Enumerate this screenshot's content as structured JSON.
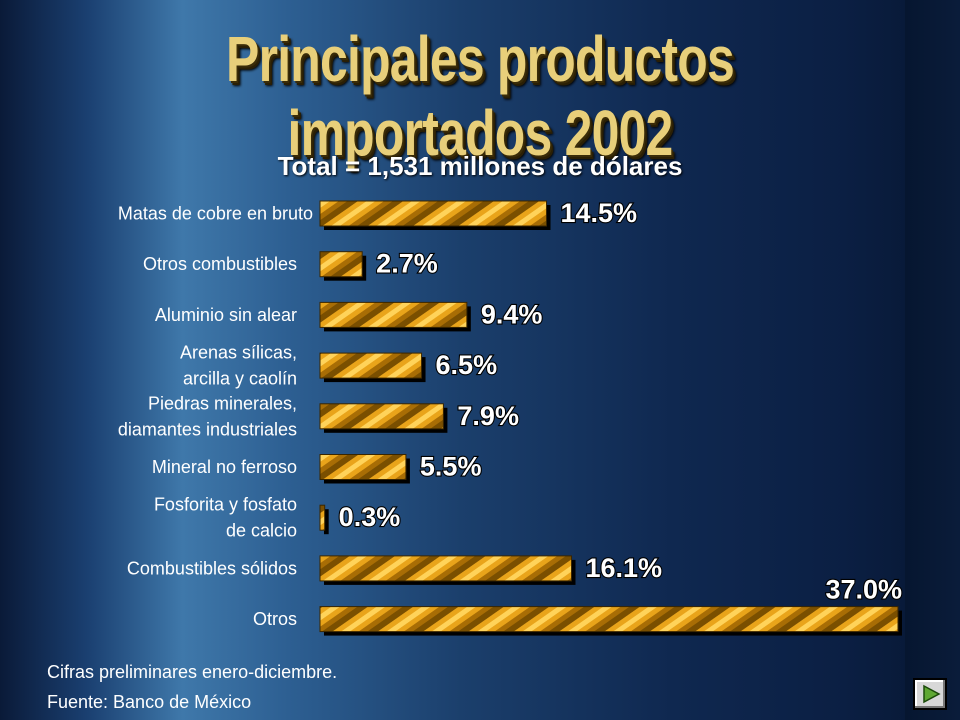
{
  "title": "Principales productos importados 2002",
  "subtitle": "Total = 1,531 millones de dólares",
  "footnotes": {
    "line1": "Cifras preliminares enero-diciembre.",
    "line2": "Fuente: Banco de México"
  },
  "nav": {
    "icon": "play-next-icon"
  },
  "colors": {
    "bar": "#e8a317",
    "bar_dark": "#6b4400",
    "title": "#e8cf7a"
  },
  "chart_data": {
    "type": "bar",
    "orientation": "horizontal",
    "title": "Principales productos importados 2002",
    "subtitle": "Total = 1,531 millones de dólares",
    "unit": "%",
    "categories": [
      [
        "Matas de cobre en bruto"
      ],
      [
        "Otros combustibles"
      ],
      [
        "Aluminio sin alear"
      ],
      [
        "Arenas sílicas,",
        "arcilla y caolín"
      ],
      [
        "Piedras minerales,",
        "diamantes industriales"
      ],
      [
        "Mineral no ferroso"
      ],
      [
        "Fosforita y fosfato",
        "de calcio"
      ],
      [
        "Combustibles sólidos"
      ],
      [
        "Otros"
      ]
    ],
    "values": [
      14.5,
      2.7,
      9.4,
      6.5,
      7.9,
      5.5,
      0.3,
      16.1,
      37.0
    ],
    "value_labels": [
      "14.5%",
      "2.7%",
      "9.4%",
      "6.5%",
      "7.9%",
      "5.5%",
      "0.3%",
      "16.1%",
      "37.0%"
    ],
    "xlim": [
      0,
      37.0
    ],
    "grid": false,
    "legend": "none"
  }
}
